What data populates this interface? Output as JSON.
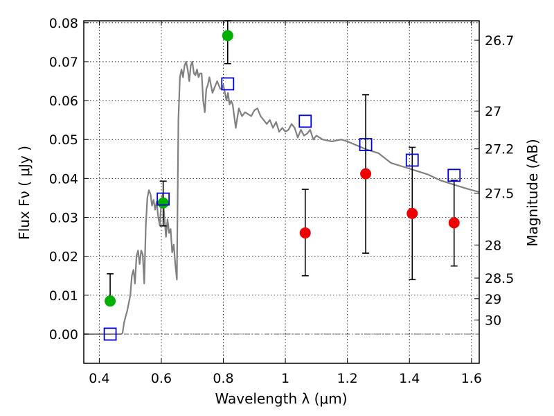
{
  "chart_data": {
    "type": "scatter",
    "xlabel": "Wavelength  λ (μm)",
    "ylabel": "Flux  Fν  ( μJy )",
    "y2label": "Magnitude (AB)",
    "xlim": [
      0.35,
      1.625
    ],
    "ylim": [
      -0.0075,
      0.0805
    ],
    "x_ticks": [
      0.4,
      0.6,
      0.8,
      1.0,
      1.2,
      1.4,
      1.6
    ],
    "x_tick_labels": [
      "0.4",
      "0.6",
      "0.8",
      "1",
      "1.2",
      "1.4",
      "1.6"
    ],
    "y_ticks": [
      0.0,
      0.01,
      0.02,
      0.03,
      0.04,
      0.05,
      0.06,
      0.07,
      0.08
    ],
    "y_tick_labels": [
      "0.00",
      "0.01",
      "0.02",
      "0.03",
      "0.04",
      "0.05",
      "0.06",
      "0.07",
      "0.08"
    ],
    "mag_ticks": [
      {
        "label": "26.7",
        "flux": 0.0755
      },
      {
        "label": "27",
        "flux": 0.0573
      },
      {
        "label": "27.2",
        "flux": 0.0476
      },
      {
        "label": "27.5",
        "flux": 0.0362
      },
      {
        "label": "28",
        "flux": 0.0229
      },
      {
        "label": "28.5",
        "flux": 0.0144
      },
      {
        "label": "29",
        "flux": 0.0091
      },
      {
        "label": "30",
        "flux": 0.0036
      }
    ],
    "grid": true,
    "zero_line": true,
    "series": [
      {
        "marker": "circle",
        "color": "#00b000",
        "points": [
          {
            "x": 0.435,
            "y": 0.0085,
            "err_low": 0.0085,
            "err_high": 0.0155
          },
          {
            "x": 0.606,
            "y": 0.0337,
            "err_low": 0.0278,
            "err_high": 0.0393
          },
          {
            "x": 0.814,
            "y": 0.0767,
            "err_low": 0.0695,
            "err_high": 0.0805
          }
        ]
      },
      {
        "marker": "circle",
        "color": "#ee0000",
        "points": [
          {
            "x": 1.064,
            "y": 0.026,
            "err_low": 0.015,
            "err_high": 0.0372
          },
          {
            "x": 1.259,
            "y": 0.0412,
            "err_low": 0.0208,
            "err_high": 0.0615
          },
          {
            "x": 1.409,
            "y": 0.031,
            "err_low": 0.014,
            "err_high": 0.048
          },
          {
            "x": 1.544,
            "y": 0.0286,
            "err_low": 0.0175,
            "err_high": 0.0395
          }
        ]
      },
      {
        "marker": "square",
        "color": "#0000dd",
        "points": [
          {
            "x": 0.435,
            "y": 0.0
          },
          {
            "x": 0.606,
            "y": 0.0347
          },
          {
            "x": 0.814,
            "y": 0.0643
          },
          {
            "x": 1.064,
            "y": 0.0547
          },
          {
            "x": 1.259,
            "y": 0.0487
          },
          {
            "x": 1.409,
            "y": 0.0447
          },
          {
            "x": 1.544,
            "y": 0.0408
          }
        ]
      }
    ],
    "model_curve": {
      "color": "#808080",
      "x": [
        0.35,
        0.47,
        0.475,
        0.48,
        0.49,
        0.5,
        0.505,
        0.51,
        0.515,
        0.52,
        0.525,
        0.53,
        0.535,
        0.54,
        0.545,
        0.55,
        0.555,
        0.56,
        0.565,
        0.57,
        0.575,
        0.58,
        0.585,
        0.59,
        0.595,
        0.6,
        0.605,
        0.61,
        0.615,
        0.62,
        0.625,
        0.63,
        0.635,
        0.64,
        0.645,
        0.65,
        0.655,
        0.66,
        0.665,
        0.67,
        0.675,
        0.68,
        0.685,
        0.69,
        0.695,
        0.7,
        0.705,
        0.71,
        0.715,
        0.72,
        0.725,
        0.73,
        0.735,
        0.74,
        0.745,
        0.75,
        0.755,
        0.76,
        0.765,
        0.77,
        0.775,
        0.78,
        0.785,
        0.79,
        0.795,
        0.8,
        0.805,
        0.81,
        0.815,
        0.82,
        0.825,
        0.83,
        0.84,
        0.85,
        0.86,
        0.87,
        0.88,
        0.89,
        0.9,
        0.91,
        0.92,
        0.93,
        0.94,
        0.95,
        0.96,
        0.97,
        0.98,
        0.99,
        1.0,
        1.01,
        1.02,
        1.03,
        1.04,
        1.05,
        1.06,
        1.07,
        1.08,
        1.09,
        1.1,
        1.12,
        1.15,
        1.18,
        1.2,
        1.23,
        1.26,
        1.3,
        1.34,
        1.38,
        1.42,
        1.46,
        1.5,
        1.54,
        1.58,
        1.625
      ],
      "y": [
        0.0,
        0.0,
        0.0003,
        0.003,
        0.006,
        0.01,
        0.015,
        0.0165,
        0.013,
        0.02,
        0.0215,
        0.018,
        0.0215,
        0.0205,
        0.013,
        0.028,
        0.035,
        0.037,
        0.036,
        0.033,
        0.0345,
        0.032,
        0.034,
        0.03,
        0.028,
        0.034,
        0.036,
        0.03,
        0.025,
        0.0295,
        0.026,
        0.027,
        0.021,
        0.023,
        0.018,
        0.014,
        0.055,
        0.066,
        0.068,
        0.066,
        0.069,
        0.07,
        0.068,
        0.065,
        0.069,
        0.07,
        0.067,
        0.0665,
        0.068,
        0.066,
        0.067,
        0.067,
        0.06,
        0.057,
        0.063,
        0.064,
        0.066,
        0.064,
        0.062,
        0.063,
        0.064,
        0.065,
        0.064,
        0.063,
        0.063,
        0.064,
        0.062,
        0.06,
        0.062,
        0.059,
        0.06,
        0.059,
        0.053,
        0.058,
        0.056,
        0.057,
        0.0565,
        0.056,
        0.0575,
        0.058,
        0.056,
        0.055,
        0.054,
        0.055,
        0.053,
        0.0545,
        0.052,
        0.053,
        0.052,
        0.0525,
        0.054,
        0.053,
        0.0505,
        0.0525,
        0.051,
        0.0515,
        0.0525,
        0.05,
        0.051,
        0.05,
        0.0495,
        0.05,
        0.0495,
        0.0485,
        0.0475,
        0.0465,
        0.044,
        0.043,
        0.042,
        0.041,
        0.0395,
        0.0385,
        0.0375,
        0.0365
      ]
    }
  }
}
